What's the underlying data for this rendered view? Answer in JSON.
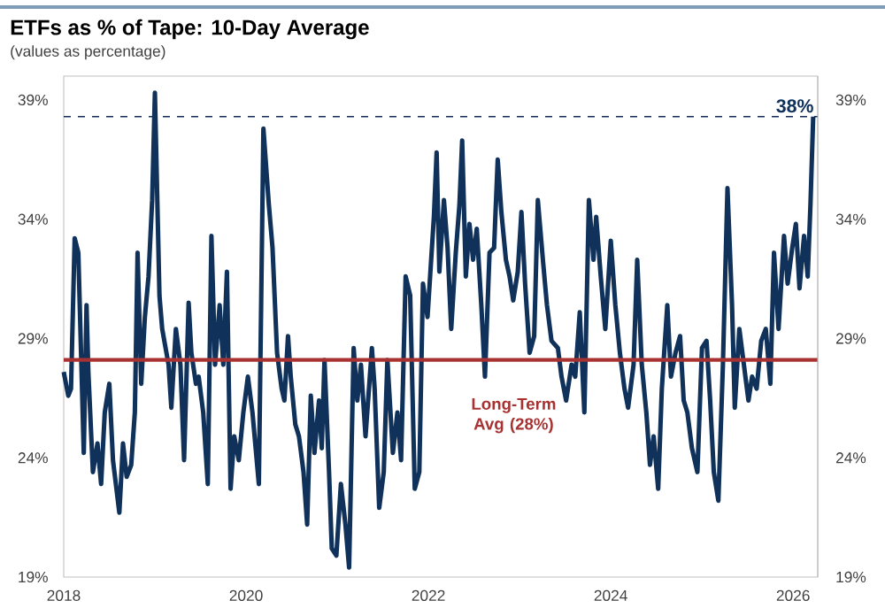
{
  "chart_data": {
    "type": "line",
    "title": "ETFs as % of Tape: 10-Day Average",
    "subtitle": "(values as percentage)",
    "x": [
      2018.0,
      2018.05,
      2018.08,
      2018.12,
      2018.16,
      2018.19,
      2018.22,
      2018.25,
      2018.27,
      2018.32,
      2018.37,
      2018.41,
      2018.45,
      2018.5,
      2018.54,
      2018.61,
      2018.65,
      2018.69,
      2018.74,
      2018.78,
      2018.81,
      2018.85,
      2018.89,
      2018.93,
      2018.97,
      2019.0,
      2019.05,
      2019.08,
      2019.15,
      2019.18,
      2019.23,
      2019.28,
      2019.32,
      2019.37,
      2019.4,
      2019.45,
      2019.48,
      2019.53,
      2019.58,
      2019.62,
      2019.66,
      2019.71,
      2019.75,
      2019.79,
      2019.83,
      2019.87,
      2019.92,
      2019.97,
      2020.02,
      2020.07,
      2020.14,
      2020.19,
      2020.25,
      2020.29,
      2020.34,
      2020.39,
      2020.42,
      2020.46,
      2020.49,
      2020.54,
      2020.58,
      2020.63,
      2020.67,
      2020.71,
      2020.75,
      2020.8,
      2020.83,
      2020.86,
      2020.91,
      2020.94,
      2020.99,
      2021.04,
      2021.09,
      2021.13,
      2021.18,
      2021.22,
      2021.26,
      2021.31,
      2021.38,
      2021.41,
      2021.46,
      2021.51,
      2021.55,
      2021.61,
      2021.66,
      2021.7,
      2021.75,
      2021.8,
      2021.85,
      2021.9,
      2021.94,
      2021.99,
      2022.06,
      2022.09,
      2022.12,
      2022.17,
      2022.21,
      2022.25,
      2022.3,
      2022.34,
      2022.37,
      2022.41,
      2022.45,
      2022.49,
      2022.53,
      2022.58,
      2022.62,
      2022.67,
      2022.72,
      2022.76,
      2022.8,
      2022.85,
      2022.89,
      2022.93,
      2022.98,
      2023.02,
      2023.06,
      2023.11,
      2023.16,
      2023.2,
      2023.26,
      2023.3,
      2023.35,
      2023.42,
      2023.46,
      2023.51,
      2023.57,
      2023.61,
      2023.66,
      2023.71,
      2023.76,
      2023.81,
      2023.84,
      2023.89,
      2023.94,
      2024.0,
      2024.05,
      2024.1,
      2024.15,
      2024.19,
      2024.25,
      2024.29,
      2024.34,
      2024.39,
      2024.43,
      2024.47,
      2024.52,
      2024.56,
      2024.62,
      2024.66,
      2024.71,
      2024.76,
      2024.8,
      2024.84,
      2024.89,
      2024.95,
      2025.0,
      2025.05,
      2025.09,
      2025.13,
      2025.18,
      2025.23,
      2025.28,
      2025.33,
      2025.36,
      2025.41,
      2025.46,
      2025.51,
      2025.55,
      2025.6,
      2025.65,
      2025.7,
      2025.75,
      2025.79,
      2025.84,
      2025.9,
      2025.94,
      2025.99,
      2026.03,
      2026.07,
      2026.12,
      2026.16,
      2026.19,
      2026.22
    ],
    "series": [
      {
        "color": "#10325a",
        "values": [
          27.6,
          26.6,
          26.9,
          33.2,
          32.6,
          28.4,
          24.2,
          30.4,
          27.6,
          23.4,
          24.6,
          22.9,
          25.9,
          27.1,
          23.9,
          21.7,
          24.6,
          23.2,
          23.7,
          25.9,
          32.6,
          27.1,
          29.9,
          31.6,
          34.8,
          39.3,
          30.8,
          29.4,
          27.9,
          26.1,
          29.4,
          27.9,
          23.9,
          30.5,
          28.4,
          27.1,
          27.4,
          25.9,
          22.9,
          33.3,
          27.9,
          30.4,
          27.9,
          31.8,
          22.7,
          24.9,
          23.9,
          25.9,
          27.4,
          25.9,
          22.9,
          37.8,
          34.6,
          32.8,
          28.4,
          26.9,
          26.4,
          29.1,
          27.4,
          25.4,
          24.9,
          23.4,
          21.2,
          26.6,
          24.2,
          26.4,
          24.4,
          28.1,
          23.4,
          20.2,
          19.9,
          22.9,
          21.2,
          19.4,
          28.6,
          26.4,
          27.9,
          24.9,
          28.6,
          26.9,
          21.9,
          23.4,
          28.1,
          24.2,
          25.9,
          23.9,
          31.6,
          30.8,
          22.7,
          23.4,
          31.3,
          29.9,
          34.1,
          36.8,
          31.8,
          34.8,
          32.8,
          29.4,
          32.6,
          34.6,
          37.3,
          31.6,
          33.8,
          32.3,
          33.6,
          30.4,
          27.4,
          32.6,
          32.8,
          36.5,
          34.3,
          32.3,
          31.6,
          30.6,
          31.8,
          34.3,
          31.3,
          28.4,
          29.1,
          34.8,
          32.1,
          30.4,
          28.9,
          28.6,
          27.4,
          26.4,
          27.9,
          27.4,
          30.1,
          25.9,
          34.8,
          32.3,
          34.1,
          31.6,
          29.4,
          33.1,
          30.4,
          28.4,
          26.9,
          26.1,
          27.9,
          32.3,
          27.9,
          25.9,
          23.7,
          24.9,
          22.7,
          26.9,
          30.4,
          27.4,
          28.4,
          29.1,
          26.4,
          25.9,
          24.4,
          23.4,
          28.6,
          28.9,
          26.4,
          23.4,
          22.2,
          27.9,
          35.3,
          30.4,
          26.1,
          29.4,
          27.9,
          26.4,
          27.4,
          26.9,
          28.9,
          29.4,
          27.1,
          32.6,
          29.4,
          33.3,
          31.3,
          32.8,
          33.8,
          31.1,
          33.3,
          31.6,
          34.6,
          38.3
        ]
      }
    ],
    "xlim": [
      2018,
      2026.27
    ],
    "xticks": [
      2018,
      2020,
      2022,
      2024,
      2026
    ],
    "ylim": [
      19,
      40
    ],
    "yticks": [
      {
        "value": 19,
        "label": "19%"
      },
      {
        "value": 24,
        "label": "24%"
      },
      {
        "value": 29,
        "label": "29%"
      },
      {
        "value": 34,
        "label": "34%"
      },
      {
        "value": 39,
        "label": "39%"
      }
    ],
    "y2lim": [
      19,
      40
    ],
    "y2ticks": [
      {
        "value": 19,
        "label": "19%"
      },
      {
        "value": 24,
        "label": "24%"
      },
      {
        "value": 29,
        "label": "29%"
      },
      {
        "value": 34,
        "label": "34%"
      },
      {
        "value": 39,
        "label": "39%"
      }
    ],
    "ref_lines": [
      {
        "axis": "y",
        "value": 28.1,
        "label": "Long-Term Avg (28%)",
        "color": "#a83232",
        "line_style": "solid"
      },
      {
        "axis": "y",
        "value": 38.3,
        "label": "38%",
        "color": "#10325a",
        "line_style": "dashed"
      }
    ]
  }
}
